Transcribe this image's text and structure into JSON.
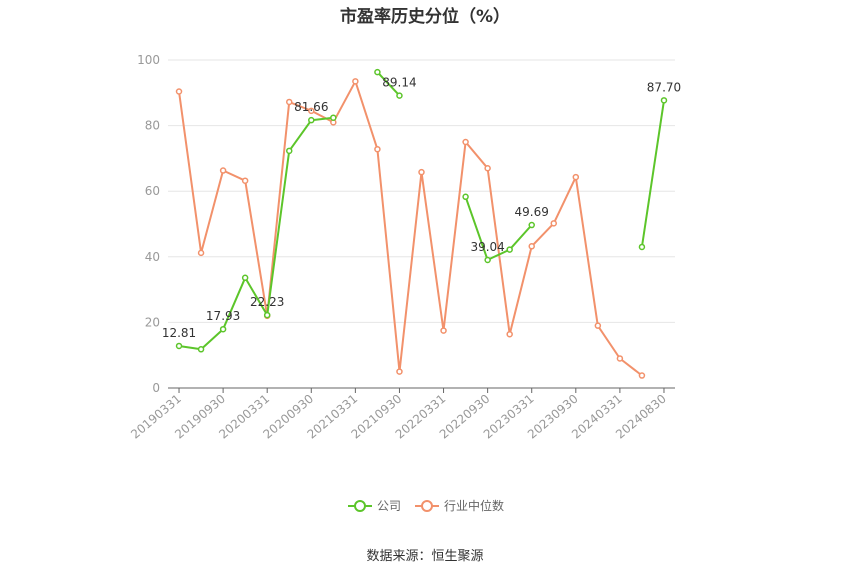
{
  "title": "市盈率历史分位（%）",
  "source": "数据来源：恒生聚源",
  "chart_data": {
    "type": "line",
    "x": [
      "20190331",
      "20190630",
      "20190930",
      "20191231",
      "20200331",
      "20200630",
      "20200930",
      "20201231",
      "20210331",
      "20210630",
      "20210930",
      "20211231",
      "20220331",
      "20220630",
      "20220930",
      "20221231",
      "20230331",
      "20230630",
      "20230930",
      "20231231",
      "20240331",
      "20240630",
      "20240830"
    ],
    "x_tick_labels": [
      "20190331",
      "20190930",
      "20200331",
      "20200930",
      "20210331",
      "20210930",
      "20220331",
      "20220930",
      "20230331",
      "20230930",
      "20240331",
      "20240830"
    ],
    "y_ticks": [
      "0",
      "20",
      "40",
      "60",
      "80",
      "100"
    ],
    "ylim": [
      0,
      100
    ],
    "grid": true,
    "legend_position": "bottom",
    "series": [
      {
        "name": "公司",
        "color": "#5cc52a",
        "values": [
          12.81,
          11.8,
          17.93,
          33.6,
          22.23,
          72.3,
          81.66,
          82.4,
          null,
          96.3,
          89.14,
          null,
          null,
          58.3,
          39.04,
          42.2,
          49.69,
          null,
          null,
          null,
          null,
          43.0,
          87.7
        ],
        "labels": {
          "0": "12.81",
          "2": "17.93",
          "4": "22.23",
          "6": "81.66",
          "10": "89.14",
          "14": "39.04",
          "16": "49.69",
          "22": "87.70"
        }
      },
      {
        "name": "行业中位数",
        "color": "#f2916b",
        "values": [
          90.4,
          41.2,
          66.3,
          63.2,
          22.0,
          87.2,
          84.5,
          81.0,
          93.5,
          72.8,
          5.0,
          65.8,
          17.5,
          75.0,
          67.0,
          16.4,
          43.2,
          50.2,
          64.3,
          19.0,
          9.0,
          3.8,
          null
        ]
      }
    ]
  }
}
